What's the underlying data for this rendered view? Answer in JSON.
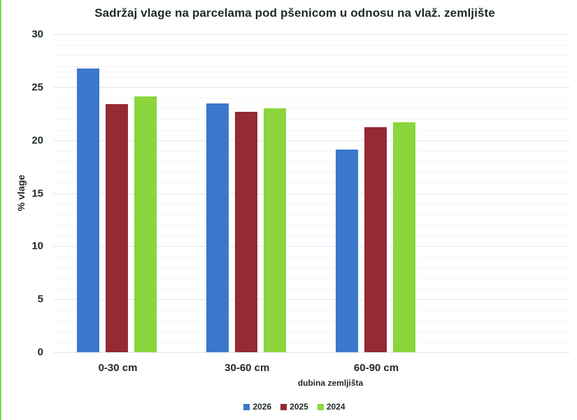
{
  "title": "Sadržaj vlage na parcelama pod pšenicom u odnosu na vlaž. zemljište",
  "colors": {
    "2026": "#3b78cc",
    "2025": "#952a35",
    "2024": "#8ad63c",
    "frame_edge": "#7ed957"
  },
  "y_axis": {
    "label": "% vlage",
    "ticks": [
      "0",
      "5",
      "10",
      "15",
      "20",
      "25",
      "30"
    ]
  },
  "x_axis": {
    "label": "dubina zemljišta",
    "ticks": [
      "0-30 cm",
      "30-60 cm",
      "60-90 cm"
    ]
  },
  "legend": [
    {
      "label": "2026",
      "color": "#3b78cc"
    },
    {
      "label": "2025",
      "color": "#952a35"
    },
    {
      "label": "2024",
      "color": "#8ad63c"
    }
  ],
  "chart_data": {
    "type": "bar",
    "title": "Sadržaj vlage na parcelama pod pšenicom u odnosu na vlaž. zemljište",
    "xlabel": "dubina zemljišta",
    "ylabel": "% vlage",
    "categories": [
      "0-30 cm",
      "30-60 cm",
      "60-90 cm"
    ],
    "series": [
      {
        "name": "2026",
        "color": "#3b78cc",
        "values": [
          26.8,
          23.5,
          19.1
        ]
      },
      {
        "name": "2025",
        "color": "#952a35",
        "values": [
          23.4,
          22.7,
          21.2
        ]
      },
      {
        "name": "2024",
        "color": "#8ad63c",
        "values": [
          24.1,
          23.0,
          21.7
        ]
      }
    ],
    "ylim": [
      0,
      30
    ],
    "yticks": [
      0,
      5,
      10,
      15,
      20,
      25,
      30
    ],
    "grid": true,
    "legend_position": "bottom"
  }
}
